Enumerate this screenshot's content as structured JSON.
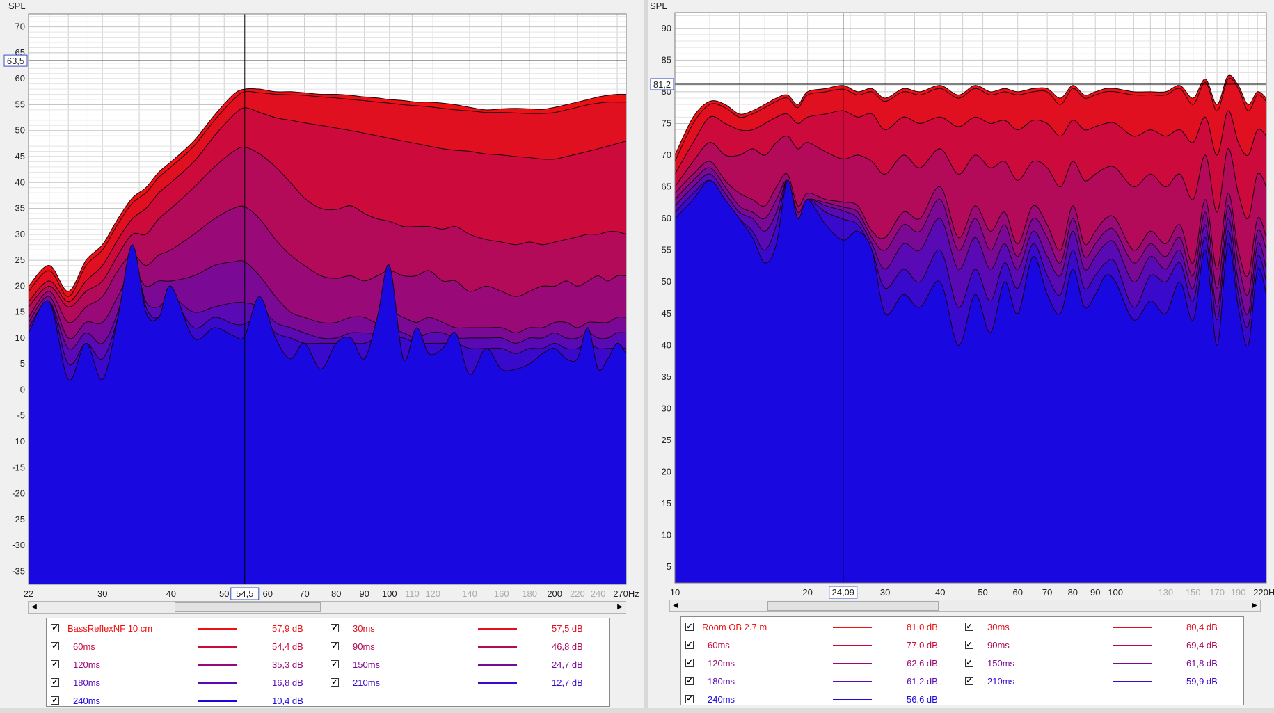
{
  "charts": [
    {
      "id": "left",
      "ylabel": "SPL",
      "cursor": {
        "x_label": "54,5",
        "y_label": "63,5",
        "x": 54.5,
        "y": 63.5
      },
      "x_ticks": [
        "22",
        "30",
        "40",
        "50",
        "54,5",
        "60",
        "70",
        "80",
        "90",
        "100",
        "110",
        "120",
        "140",
        "160",
        "180",
        "200",
        "220",
        "240",
        "270Hz"
      ],
      "y_ticks": [
        "70",
        "65",
        "60",
        "55",
        "50",
        "45",
        "40",
        "35",
        "30",
        "25",
        "20",
        "15",
        "10",
        "5",
        "0",
        "-5",
        "-10",
        "-15",
        "-20",
        "-25",
        "-30",
        "-35"
      ],
      "legend": [
        {
          "label": "BassReflexNF 10 cm",
          "value": "57,9 dB",
          "color": "#ee1111"
        },
        {
          "label": "30ms",
          "value": "57,5 dB",
          "color": "#e01020"
        },
        {
          "label": "60ms",
          "value": "54,4 dB",
          "color": "#cc0a3c"
        },
        {
          "label": "90ms",
          "value": "46,8 dB",
          "color": "#b30a5a"
        },
        {
          "label": "120ms",
          "value": "35,3 dB",
          "color": "#990a78"
        },
        {
          "label": "150ms",
          "value": "24,7 dB",
          "color": "#7a0a96"
        },
        {
          "label": "180ms",
          "value": "16,8 dB",
          "color": "#5a0ab4"
        },
        {
          "label": "210ms",
          "value": "12,7 dB",
          "color": "#3a0acc"
        },
        {
          "label": "240ms",
          "value": "10,4 dB",
          "color": "#1a08e0"
        }
      ]
    },
    {
      "id": "right",
      "ylabel": "SPL",
      "cursor": {
        "x_label": "24,09",
        "y_label": "81,2",
        "x": 24.09,
        "y": 81.2
      },
      "x_ticks": [
        "10",
        "20",
        "24,09",
        "30",
        "40",
        "50",
        "60",
        "70",
        "80",
        "90",
        "100",
        "130",
        "150",
        "170",
        "190",
        "220Hz"
      ],
      "y_ticks": [
        "90",
        "85",
        "80",
        "75",
        "70",
        "65",
        "60",
        "55",
        "50",
        "45",
        "40",
        "35",
        "30",
        "25",
        "20",
        "15",
        "10",
        "5"
      ],
      "legend": [
        {
          "label": "Room OB 2.7 m",
          "value": "81,0 dB",
          "color": "#ee1111"
        },
        {
          "label": "30ms",
          "value": "80,4 dB",
          "color": "#e01020"
        },
        {
          "label": "60ms",
          "value": "77,0 dB",
          "color": "#cc0a3c"
        },
        {
          "label": "90ms",
          "value": "69,4 dB",
          "color": "#b30a5a"
        },
        {
          "label": "120ms",
          "value": "62,6 dB",
          "color": "#990a78"
        },
        {
          "label": "150ms",
          "value": "61,8 dB",
          "color": "#7a0a96"
        },
        {
          "label": "180ms",
          "value": "61,2 dB",
          "color": "#5a0ab4"
        },
        {
          "label": "210ms",
          "value": "59,9 dB",
          "color": "#3a0acc"
        },
        {
          "label": "240ms",
          "value": "56,6 dB",
          "color": "#1a08e0"
        }
      ]
    }
  ],
  "chart_data": [
    {
      "type": "area",
      "title": "",
      "xlabel": "Hz",
      "ylabel": "SPL",
      "xscale": "log",
      "xlim": [
        22,
        270
      ],
      "ylim": [
        -37.5,
        72.5
      ],
      "grid": true,
      "legend_position": "bottom",
      "x": [
        22,
        24,
        26,
        28,
        30,
        32,
        34,
        36,
        38,
        40,
        44,
        48,
        52,
        54.5,
        58,
        62,
        66,
        70,
        75,
        80,
        85,
        90,
        95,
        100,
        106,
        112,
        118,
        125,
        132,
        140,
        150,
        160,
        170,
        180,
        190,
        200,
        210,
        220,
        230,
        240,
        250,
        260,
        270
      ],
      "series": [
        {
          "name": "BassReflexNF 10 cm",
          "values": [
            20,
            24,
            19,
            25,
            28,
            33,
            37,
            39,
            42,
            44,
            48,
            53,
            57,
            58,
            58,
            57.5,
            57.5,
            57.3,
            57,
            57,
            56.8,
            56.5,
            56.3,
            56,
            55.8,
            55.5,
            55.5,
            55.3,
            55,
            54.5,
            54,
            54.2,
            54.3,
            54.2,
            54.1,
            54.5,
            55,
            55.5,
            56,
            56.5,
            56.8,
            57,
            57
          ]
        },
        {
          "name": "30ms",
          "values": [
            19,
            23,
            18,
            24,
            27,
            32,
            36,
            38,
            41,
            43,
            47,
            52,
            56,
            57.5,
            57.3,
            57,
            56.9,
            56.8,
            56.5,
            56.3,
            56,
            55.8,
            55.5,
            55.3,
            55,
            54.8,
            54.6,
            54.3,
            54,
            53.8,
            53.5,
            53.5,
            53.4,
            53.3,
            53.3,
            53.5,
            54,
            54.5,
            55,
            55.3,
            55.5,
            55.5,
            55.5
          ]
        },
        {
          "name": "60ms",
          "values": [
            17,
            21,
            17,
            21,
            24,
            29,
            33,
            35,
            38,
            40,
            44,
            49,
            53,
            54.4,
            53.5,
            52.5,
            52,
            51.5,
            51,
            50.5,
            50,
            49.5,
            49,
            48.5,
            48,
            47.5,
            47,
            46.5,
            46.2,
            46,
            45.5,
            45.3,
            45,
            44.8,
            44.5,
            44.5,
            45,
            45.5,
            46,
            46.5,
            47,
            47.5,
            48
          ]
        },
        {
          "name": "90ms",
          "values": [
            16,
            20,
            16,
            19,
            21,
            26,
            30,
            30,
            33,
            35,
            39,
            43,
            46,
            46.8,
            45.5,
            43,
            40,
            37,
            35,
            34.8,
            35.5,
            34,
            33,
            32.5,
            31.5,
            31.5,
            31.5,
            31,
            31.5,
            30,
            29,
            28.5,
            28,
            28.5,
            28,
            28.5,
            29,
            29.5,
            30,
            30,
            30.5,
            30.5,
            30
          ]
        },
        {
          "name": "120ms",
          "values": [
            14,
            19,
            13,
            16,
            18,
            23,
            26,
            24,
            26,
            27,
            30,
            33,
            35,
            35.3,
            33,
            29,
            26,
            24,
            22,
            21.5,
            22,
            21,
            22,
            23,
            22,
            22,
            23,
            21,
            21,
            19,
            20,
            19,
            18,
            19,
            20,
            20,
            21,
            20,
            21,
            22,
            21,
            22,
            22
          ]
        },
        {
          "name": "150ms",
          "values": [
            13,
            18,
            10,
            13,
            13,
            18,
            23,
            20,
            21,
            21,
            22,
            24,
            24.7,
            24.7,
            22,
            18,
            15,
            14,
            13,
            13,
            14,
            14,
            13,
            15,
            14,
            13,
            14,
            13,
            12,
            12,
            12,
            12,
            11,
            12,
            12,
            13,
            13,
            12,
            13,
            13,
            13,
            14,
            14
          ]
        },
        {
          "name": "180ms",
          "values": [
            12,
            17,
            8,
            11,
            9,
            15,
            25,
            17,
            16,
            18,
            15,
            16,
            16.8,
            16.8,
            16,
            13,
            12,
            11,
            10,
            10,
            11,
            11,
            11,
            12,
            11,
            10,
            11,
            11,
            10,
            10,
            10,
            10,
            9,
            10,
            10,
            11,
            10,
            10,
            11,
            10,
            10,
            11,
            11
          ]
        },
        {
          "name": "210ms",
          "values": [
            11,
            17,
            5,
            9,
            6,
            14,
            27,
            16,
            14,
            18,
            12,
            14,
            12.7,
            12.7,
            14,
            11,
            10,
            9,
            9,
            9,
            9,
            9,
            10,
            10,
            10,
            9,
            9,
            9,
            9,
            8,
            8,
            8,
            7,
            8,
            8,
            9,
            8,
            8,
            9,
            8,
            8,
            8,
            8
          ]
        },
        {
          "name": "240ms",
          "values": [
            11,
            17,
            2,
            9,
            2,
            14,
            28,
            15,
            14,
            20,
            10,
            12,
            10.4,
            10.4,
            18,
            10,
            6,
            9,
            4,
            9,
            10,
            6,
            14,
            24,
            6,
            12,
            7,
            8,
            11,
            3,
            8,
            4,
            4,
            5,
            7,
            8,
            6,
            6,
            12,
            4,
            6,
            9,
            7
          ]
        }
      ]
    },
    {
      "type": "area",
      "title": "",
      "xlabel": "Hz",
      "ylabel": "SPL",
      "xscale": "log",
      "xlim": [
        10,
        220
      ],
      "ylim": [
        2.5,
        92.5
      ],
      "grid": true,
      "legend_position": "bottom",
      "x": [
        10,
        11,
        12,
        13,
        14,
        15,
        16,
        17,
        18,
        19,
        20,
        22,
        24.09,
        26,
        28,
        30,
        33,
        36,
        40,
        44,
        48,
        52,
        56,
        60,
        65,
        70,
        75,
        80,
        85,
        90,
        95,
        100,
        110,
        120,
        130,
        140,
        150,
        160,
        170,
        180,
        190,
        200,
        210,
        220
      ],
      "series": [
        {
          "name": "Room OB 2.7 m",
          "values": [
            70,
            76,
            78.5,
            78,
            76.5,
            77,
            78,
            79,
            79.5,
            78,
            80,
            80.5,
            81,
            80,
            80.5,
            79,
            80.5,
            80,
            81,
            79.5,
            81,
            80,
            80.5,
            80,
            80.5,
            80.5,
            79,
            81,
            79.5,
            80,
            80.5,
            80.5,
            80,
            80,
            80,
            81,
            79,
            82,
            78,
            82.5,
            81,
            78,
            80,
            79
          ]
        },
        {
          "name": "30ms",
          "values": [
            69,
            75,
            78,
            77.5,
            76,
            76.5,
            77.5,
            78.5,
            79,
            77.5,
            79.5,
            80,
            80.4,
            79.5,
            80,
            78.5,
            80,
            79.5,
            80.5,
            79,
            80.5,
            79.5,
            80,
            79.5,
            80,
            80,
            78,
            80.5,
            79,
            79.5,
            80,
            80,
            79.5,
            79.5,
            79.5,
            80.5,
            78,
            81.5,
            77,
            82,
            80.5,
            77,
            79.5,
            78.5
          ]
        },
        {
          "name": "60ms",
          "values": [
            67,
            72,
            76,
            75,
            74,
            74,
            75,
            76,
            76.5,
            75,
            76,
            76.5,
            77,
            76,
            76.5,
            74,
            76,
            75,
            76,
            74.5,
            76,
            75,
            75.5,
            74,
            75.5,
            75,
            73,
            75.5,
            74,
            74.5,
            75,
            75,
            73,
            74,
            73,
            74,
            72,
            76,
            70,
            77,
            72,
            70,
            74,
            73
          ]
        },
        {
          "name": "90ms",
          "values": [
            65,
            69,
            72,
            70,
            70,
            71,
            70,
            72,
            73,
            71,
            72,
            70.5,
            69.4,
            70,
            69,
            67,
            70,
            68,
            71,
            67,
            70,
            68,
            69,
            66,
            69,
            68,
            65,
            69,
            66,
            67,
            68,
            68,
            65,
            67,
            65,
            67,
            63,
            70,
            61,
            71,
            64,
            60,
            67,
            65
          ]
        },
        {
          "name": "120ms",
          "values": [
            64,
            67,
            69,
            66,
            64,
            63,
            62,
            65,
            67,
            62,
            64,
            63,
            62.6,
            62,
            58,
            57,
            61,
            60,
            65,
            57,
            62,
            58,
            61,
            56,
            62,
            59,
            55,
            62,
            56,
            58,
            60,
            60,
            55,
            58,
            56,
            59,
            53,
            63,
            52,
            64,
            55,
            51,
            60,
            57
          ]
        },
        {
          "name": "150ms",
          "values": [
            63,
            66,
            68,
            65,
            62,
            61,
            60,
            63,
            66,
            61,
            63,
            62.5,
            61.8,
            61,
            57,
            55,
            59,
            58,
            63,
            55,
            60,
            55,
            59,
            54,
            60,
            57,
            53,
            60,
            54,
            56,
            58,
            58,
            53,
            56,
            54,
            57,
            51,
            61,
            49,
            62,
            53,
            48,
            58,
            55
          ]
        },
        {
          "name": "180ms",
          "values": [
            62,
            65,
            67,
            64,
            61,
            60,
            58,
            61,
            66,
            60,
            63,
            62,
            61.2,
            60,
            56,
            52,
            56,
            55,
            60,
            52,
            57,
            52,
            56,
            52,
            58,
            54,
            51,
            58,
            52,
            54,
            56,
            56,
            50,
            54,
            52,
            55,
            49,
            59,
            46,
            60,
            50,
            45,
            56,
            52
          ]
        },
        {
          "name": "210ms",
          "values": [
            61,
            64,
            66,
            63,
            60,
            58,
            55,
            59,
            66,
            60,
            63,
            61,
            59.9,
            59,
            55,
            49,
            52,
            50,
            55,
            46,
            52,
            47,
            53,
            49,
            56,
            51,
            48,
            55,
            49,
            51,
            53,
            53,
            46,
            51,
            50,
            53,
            47,
            57,
            44,
            58,
            48,
            43,
            54,
            50
          ]
        },
        {
          "name": "240ms",
          "values": [
            60,
            63,
            66,
            63,
            60,
            57,
            53,
            56,
            66,
            60,
            63,
            59,
            56.6,
            58,
            55,
            45,
            48,
            46,
            50,
            40,
            48,
            42,
            50,
            45,
            54,
            48,
            45,
            52,
            46,
            48,
            51,
            50,
            44,
            47,
            45,
            50,
            44,
            55,
            40,
            56,
            46,
            40,
            52,
            48
          ]
        }
      ]
    }
  ]
}
